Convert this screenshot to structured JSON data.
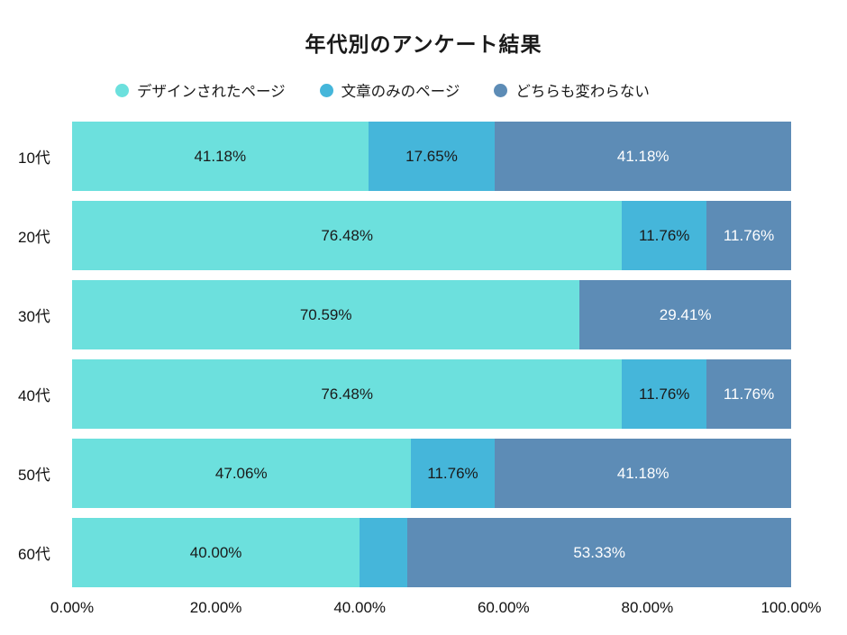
{
  "title": "年代別のアンケート結果",
  "chart_data": {
    "type": "bar",
    "stacked": true,
    "orientation": "horizontal",
    "title": "年代別のアンケート結果",
    "categories": [
      "10代",
      "20代",
      "30代",
      "40代",
      "50代",
      "60代"
    ],
    "series": [
      {
        "name": "デザインされたページ",
        "color": "#6ce0dd",
        "label_color": "#1a1a1a",
        "values": [
          41.18,
          76.48,
          70.59,
          76.48,
          47.06,
          40.0
        ]
      },
      {
        "name": "文章のみのページ",
        "color": "#45b6da",
        "label_color": "#1a1a1a",
        "values": [
          17.65,
          11.76,
          0,
          11.76,
          11.76,
          6.67
        ]
      },
      {
        "name": "どちらも変わらない",
        "color": "#5d8cb6",
        "label_color": "#ffffff",
        "values": [
          41.18,
          11.76,
          29.41,
          11.76,
          41.18,
          53.33
        ]
      }
    ],
    "labels": [
      [
        "41.18%",
        "17.65%",
        "41.18%"
      ],
      [
        "76.48%",
        "11.76%",
        "11.76%"
      ],
      [
        "70.59%",
        "",
        "29.41%"
      ],
      [
        "76.48%",
        "11.76%",
        "11.76%"
      ],
      [
        "47.06%",
        "11.76%",
        "41.18%"
      ],
      [
        "40.00%",
        "",
        "53.33%"
      ]
    ],
    "x_ticks": [
      "0.00%",
      "20.00%",
      "40.00%",
      "60.00%",
      "80.00%",
      "100.00%"
    ],
    "xlim": [
      0,
      100
    ],
    "legend_position": "top",
    "grid": false
  }
}
